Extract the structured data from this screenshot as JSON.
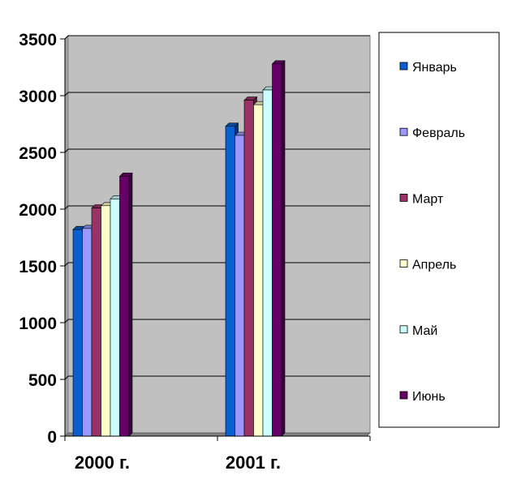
{
  "chart_data": {
    "type": "bar",
    "categories": [
      "2000 г.",
      "2001 г."
    ],
    "series": [
      {
        "name": "Январь",
        "color": "#0A5FD0",
        "values": [
          1820,
          2730
        ]
      },
      {
        "name": "Февраль",
        "color": "#9999FF",
        "values": [
          1830,
          2650
        ]
      },
      {
        "name": "Март",
        "color": "#993366",
        "values": [
          2010,
          2960
        ]
      },
      {
        "name": "Апрель",
        "color": "#FFFFCC",
        "values": [
          2030,
          2920
        ]
      },
      {
        "name": "Май",
        "color": "#CCFFFF",
        "values": [
          2090,
          3050
        ]
      },
      {
        "name": "Июнь",
        "color": "#660066",
        "values": [
          2290,
          3280
        ]
      }
    ],
    "yticks": [
      "0",
      "500",
      "1000",
      "1500",
      "2000",
      "2500",
      "3000",
      "3500"
    ],
    "ylim": [
      0,
      3500
    ],
    "grid": true,
    "legend": "right",
    "plot_background": "#C0C0C0"
  }
}
